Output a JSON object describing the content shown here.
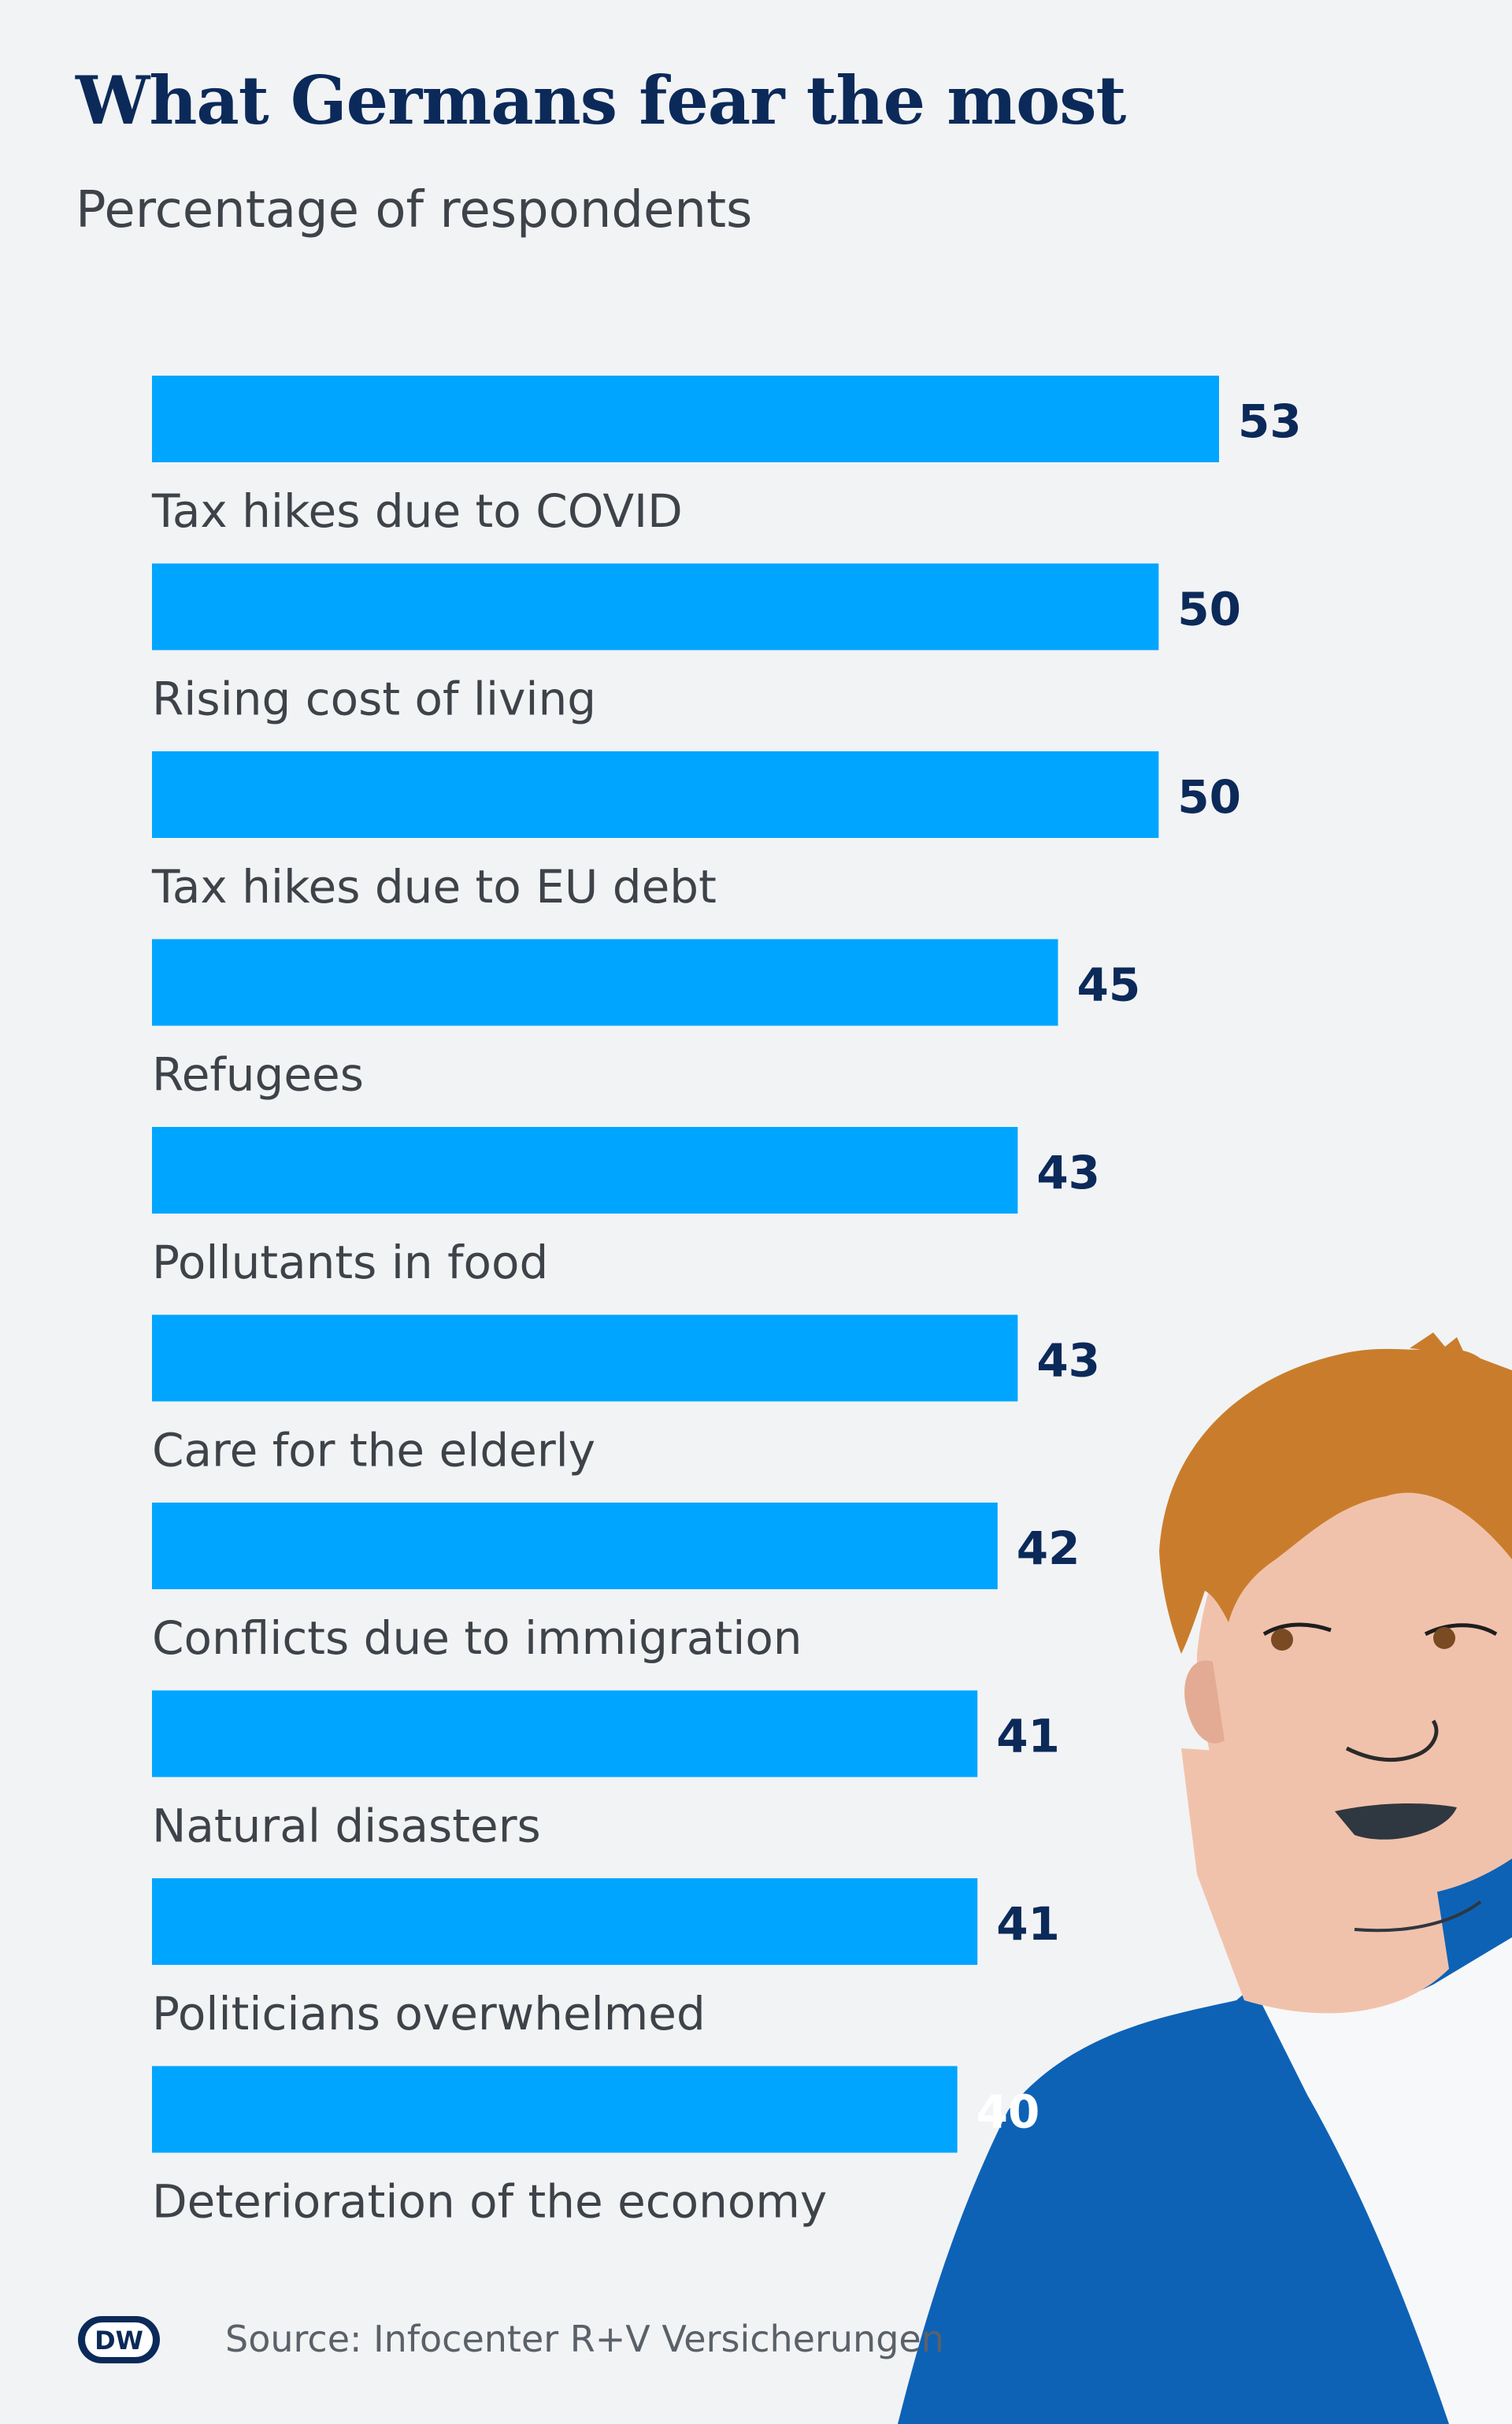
{
  "title": "What Germans fear the most",
  "subtitle": "Percentage of respondents",
  "source": "Source: Infocenter R+V Versicherungen",
  "logo_text": "DW",
  "colors": {
    "bar": "#00a5ff",
    "value_text": "#0b2a59",
    "value_text_inverse": "#ffffff",
    "title": "#0b2a59",
    "background": "#f2f3f5"
  },
  "chart_data": {
    "type": "bar",
    "orientation": "horizontal",
    "title": "What Germans fear the most",
    "subtitle": "Percentage of respondents",
    "xlabel": "",
    "ylabel": "",
    "unit": "percent",
    "xlim": [
      0,
      53
    ],
    "grid": false,
    "categories": [
      "Tax hikes due to COVID",
      "Rising cost of living",
      "Tax hikes due to EU debt",
      "Refugees",
      "Pollutants in food",
      "Care for the elderly",
      "Conflicts due to immigration",
      "Natural disasters",
      "Politicians overwhelmed",
      "Deterioration of the economy"
    ],
    "values": [
      53,
      50,
      50,
      45,
      43,
      43,
      42,
      41,
      41,
      40
    ]
  }
}
